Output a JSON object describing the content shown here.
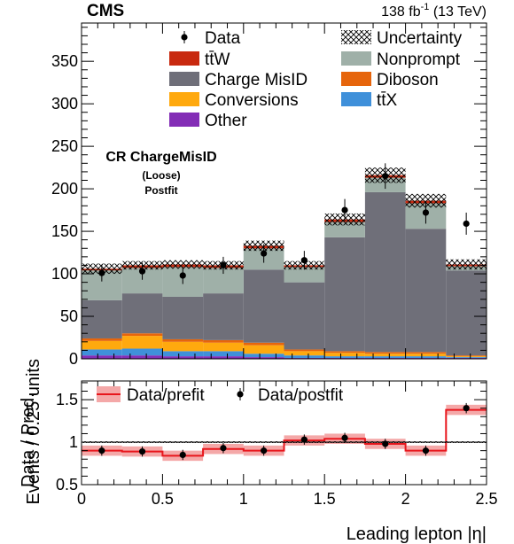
{
  "header": {
    "experiment": "CMS",
    "lumi": "138 fb",
    "lumi_sup": "-1",
    "energy": " (13 TeV)"
  },
  "region": {
    "line1": "CR ChargeMisID",
    "line2": "(Loose)",
    "line3": "Postfit"
  },
  "colors": {
    "ttW": "#c8290f",
    "nonprompt": "#9fb0a8",
    "chargemisid": "#6f6f79",
    "diboson": "#e6650c",
    "conversions": "#ffa90e",
    "ttX": "#3f90da",
    "other": "#832db6",
    "ratio_band": "#f4a8a8",
    "ratio_line": "#e8161c"
  },
  "chart_data": [
    {
      "type": "bar",
      "stacked": true,
      "xlabel": "Leading lepton |η|",
      "ylabel": "Events / 0.25 units",
      "xlim": [
        0,
        2.5
      ],
      "ylim": [
        0,
        395
      ],
      "x_ticks": [
        "0",
        "0.5",
        "1",
        "1.5",
        "2",
        "2.5"
      ],
      "y_ticks": [
        "0",
        "50",
        "100",
        "150",
        "200",
        "250",
        "300",
        "350"
      ],
      "bin_edges": [
        0,
        0.25,
        0.5,
        0.75,
        1.0,
        1.25,
        1.5,
        1.75,
        2.0,
        2.25,
        2.5
      ],
      "legend": [
        {
          "label": "Data",
          "kind": "data"
        },
        {
          "label": "Uncertainty",
          "kind": "hatch"
        },
        {
          "label": "tt̄W",
          "kind": "fill",
          "color_key": "ttW"
        },
        {
          "label": "Nonprompt",
          "kind": "fill",
          "color_key": "nonprompt"
        },
        {
          "label": "Charge MisID",
          "kind": "fill",
          "color_key": "chargemisid"
        },
        {
          "label": "Diboson",
          "kind": "fill",
          "color_key": "diboson"
        },
        {
          "label": "Conversions",
          "kind": "fill",
          "color_key": "conversions"
        },
        {
          "label": "tt̄X",
          "kind": "fill",
          "color_key": "ttX"
        },
        {
          "label": "Other",
          "kind": "fill",
          "color_key": "other"
        }
      ],
      "series": [
        {
          "name": "Other",
          "color_key": "other",
          "values": [
            4,
            4,
            3,
            3,
            2,
            1,
            1,
            1,
            1,
            1
          ]
        },
        {
          "name": "tt̄X",
          "color_key": "ttX",
          "values": [
            7,
            8,
            6,
            6,
            4,
            3,
            2,
            2,
            2,
            1
          ]
        },
        {
          "name": "Conversions",
          "color_key": "conversions",
          "values": [
            10,
            15,
            11,
            10,
            10,
            5,
            4,
            3,
            3,
            1
          ]
        },
        {
          "name": "Diboson",
          "color_key": "diboson",
          "values": [
            3,
            3,
            3,
            3,
            3,
            2,
            2,
            2,
            2,
            1
          ]
        },
        {
          "name": "Charge MisID",
          "color_key": "chargemisid",
          "values": [
            45,
            47,
            50,
            55,
            86,
            79,
            134,
            188,
            145,
            100
          ]
        },
        {
          "name": "Nonprompt",
          "color_key": "nonprompt",
          "values": [
            35,
            30,
            35,
            30,
            25,
            18,
            18,
            17,
            30,
            5
          ]
        },
        {
          "name": "tt̄W",
          "color_key": "ttW",
          "values": [
            2,
            3,
            3,
            3,
            3,
            2,
            3,
            3,
            3,
            2
          ]
        }
      ],
      "uncertainty": [
        6,
        5,
        5,
        5,
        6,
        5,
        7,
        9,
        8,
        6
      ],
      "data": {
        "x": [
          0.125,
          0.375,
          0.625,
          0.875,
          1.125,
          1.375,
          1.625,
          1.875,
          2.125,
          2.375
        ],
        "y": [
          101,
          103,
          98,
          110,
          124,
          116,
          175,
          215,
          172,
          159
        ],
        "err": [
          10,
          10,
          10,
          10,
          11,
          11,
          13,
          15,
          13,
          13
        ]
      }
    },
    {
      "type": "line",
      "xlabel": "Leading lepton |η|",
      "ylabel": "Data / Pred.",
      "xlim": [
        0,
        2.5
      ],
      "ylim": [
        0.5,
        1.72
      ],
      "x_ticks": [
        "0",
        "0.5",
        "1",
        "1.5",
        "2",
        "2.5"
      ],
      "y_ticks": [
        "0.5",
        "1",
        "1.5"
      ],
      "legend": [
        {
          "label": "Data/prefit",
          "kind": "band"
        },
        {
          "label": "Data/postfit",
          "kind": "data"
        }
      ],
      "prefit": {
        "values": [
          0.9,
          0.89,
          0.84,
          0.92,
          0.9,
          1.02,
          1.04,
          0.98,
          0.9,
          1.38
        ],
        "band": [
          0.06,
          0.06,
          0.06,
          0.06,
          0.06,
          0.06,
          0.06,
          0.06,
          0.06,
          0.06
        ]
      },
      "uncertainty": [
        0.01,
        0.01,
        0.01,
        0.01,
        0.01,
        0.01,
        0.01,
        0.01,
        0.01,
        0.01
      ],
      "postfit": {
        "y": [
          0.9,
          0.89,
          0.85,
          0.93,
          0.9,
          1.03,
          1.05,
          0.98,
          0.9,
          1.4
        ],
        "err": [
          0.06,
          0.06,
          0.06,
          0.06,
          0.06,
          0.06,
          0.06,
          0.06,
          0.06,
          0.06
        ]
      }
    }
  ]
}
